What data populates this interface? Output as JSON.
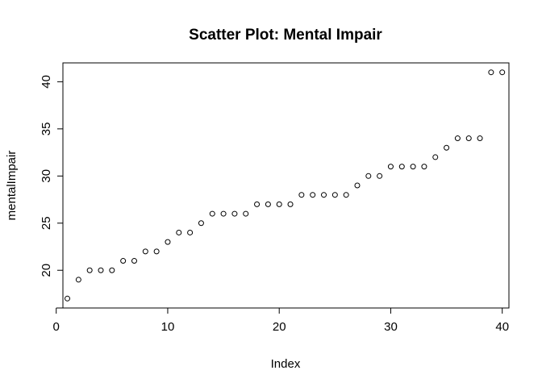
{
  "chart_data": {
    "type": "scatter",
    "title": "Scatter Plot: Mental Impair",
    "xlabel": "Index",
    "ylabel": "mentalImpair",
    "xlim": [
      0.6,
      40.6
    ],
    "ylim": [
      16,
      42
    ],
    "x_ticks": [
      0,
      10,
      20,
      30,
      40
    ],
    "y_ticks": [
      20,
      25,
      30,
      35,
      40
    ],
    "grid": false,
    "point_shape": "open-circle",
    "x": [
      1,
      2,
      3,
      4,
      5,
      6,
      7,
      8,
      9,
      10,
      11,
      12,
      13,
      14,
      15,
      16,
      17,
      18,
      19,
      20,
      21,
      22,
      23,
      24,
      25,
      26,
      27,
      28,
      29,
      30,
      31,
      32,
      33,
      34,
      35,
      36,
      37,
      38,
      39,
      40
    ],
    "y": [
      17,
      19,
      20,
      20,
      20,
      21,
      21,
      22,
      22,
      23,
      24,
      24,
      25,
      26,
      26,
      26,
      26,
      27,
      27,
      27,
      27,
      28,
      28,
      28,
      28,
      28,
      29,
      30,
      30,
      31,
      31,
      31,
      31,
      32,
      33,
      34,
      34,
      34,
      41,
      41
    ]
  }
}
